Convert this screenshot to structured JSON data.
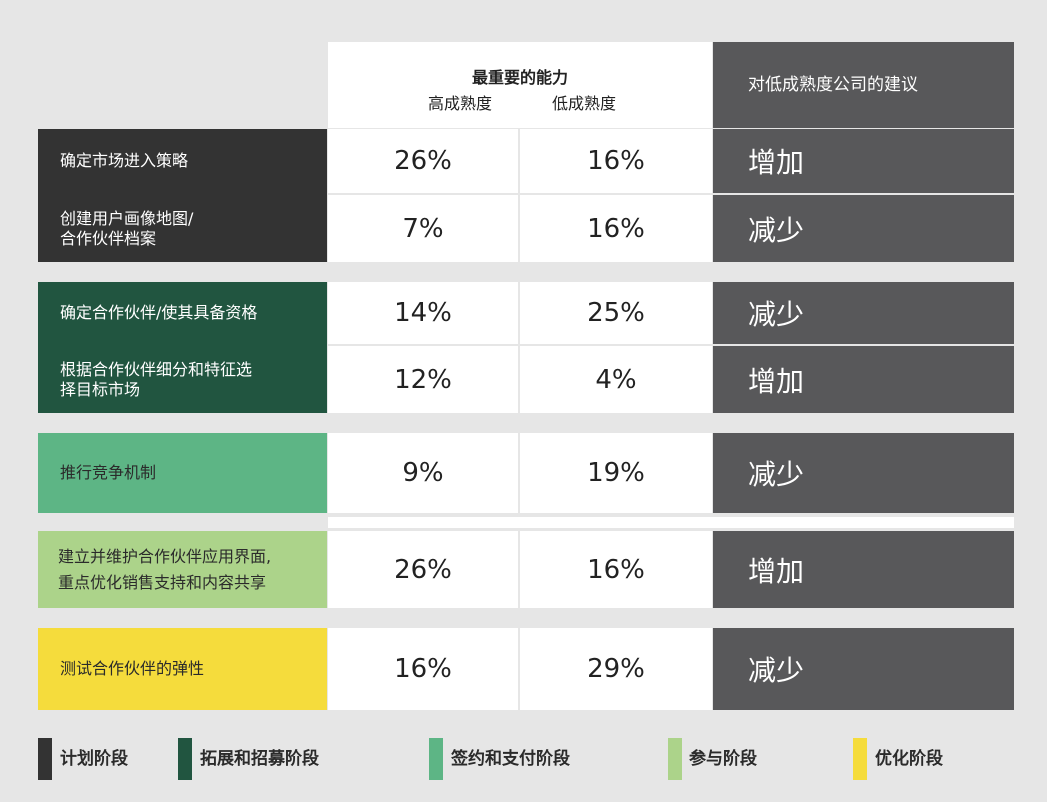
{
  "header": {
    "most_important_title": "最重要的能力",
    "col_high": "高成熟度",
    "col_low": "低成熟度",
    "advice_title": "对低成熟度公司的建议"
  },
  "rows": [
    {
      "capability": "确定市场进入策略",
      "high": "26%",
      "low": "16%",
      "advice": "增加",
      "stage": "计划阶段"
    },
    {
      "capability": "创建用户画像地图/\n合作伙伴档案",
      "high": "7%",
      "low": "16%",
      "advice": "减少",
      "stage": "计划阶段"
    },
    {
      "capability": "确定合作伙伴/使其具备资格",
      "high": "14%",
      "low": "25%",
      "advice": "减少",
      "stage": "拓展和招募阶段"
    },
    {
      "capability": "根据合作伙伴细分和特征选\n择目标市场",
      "high": "12%",
      "low": "4%",
      "advice": "增加",
      "stage": "拓展和招募阶段"
    },
    {
      "capability": "推行竞争机制",
      "high": "9%",
      "low": "19%",
      "advice": "减少",
      "stage": "签约和支付阶段"
    },
    {
      "capability": "建立并维护合作伙伴应用界面,\n重点优化销售支持和内容共享",
      "high": "26%",
      "low": "16%",
      "advice": "增加",
      "stage": "参与阶段"
    },
    {
      "capability": "测试合作伙伴的弹性",
      "high": "16%",
      "low": "29%",
      "advice": "减少",
      "stage": "优化阶段"
    }
  ],
  "legend": [
    {
      "label": "计划阶段",
      "color": "#333333"
    },
    {
      "label": "拓展和招募阶段",
      "color": "#215540"
    },
    {
      "label": "签约和支付阶段",
      "color": "#5db585"
    },
    {
      "label": "参与阶段",
      "color": "#acd38a"
    },
    {
      "label": "优化阶段",
      "color": "#f5dc3c"
    }
  ],
  "colors": {
    "planning": "#333333",
    "recruit": "#215540",
    "contract": "#5db585",
    "engage": "#acd38a",
    "optimize": "#f5dc3c",
    "advice_bg": "#58585a"
  }
}
